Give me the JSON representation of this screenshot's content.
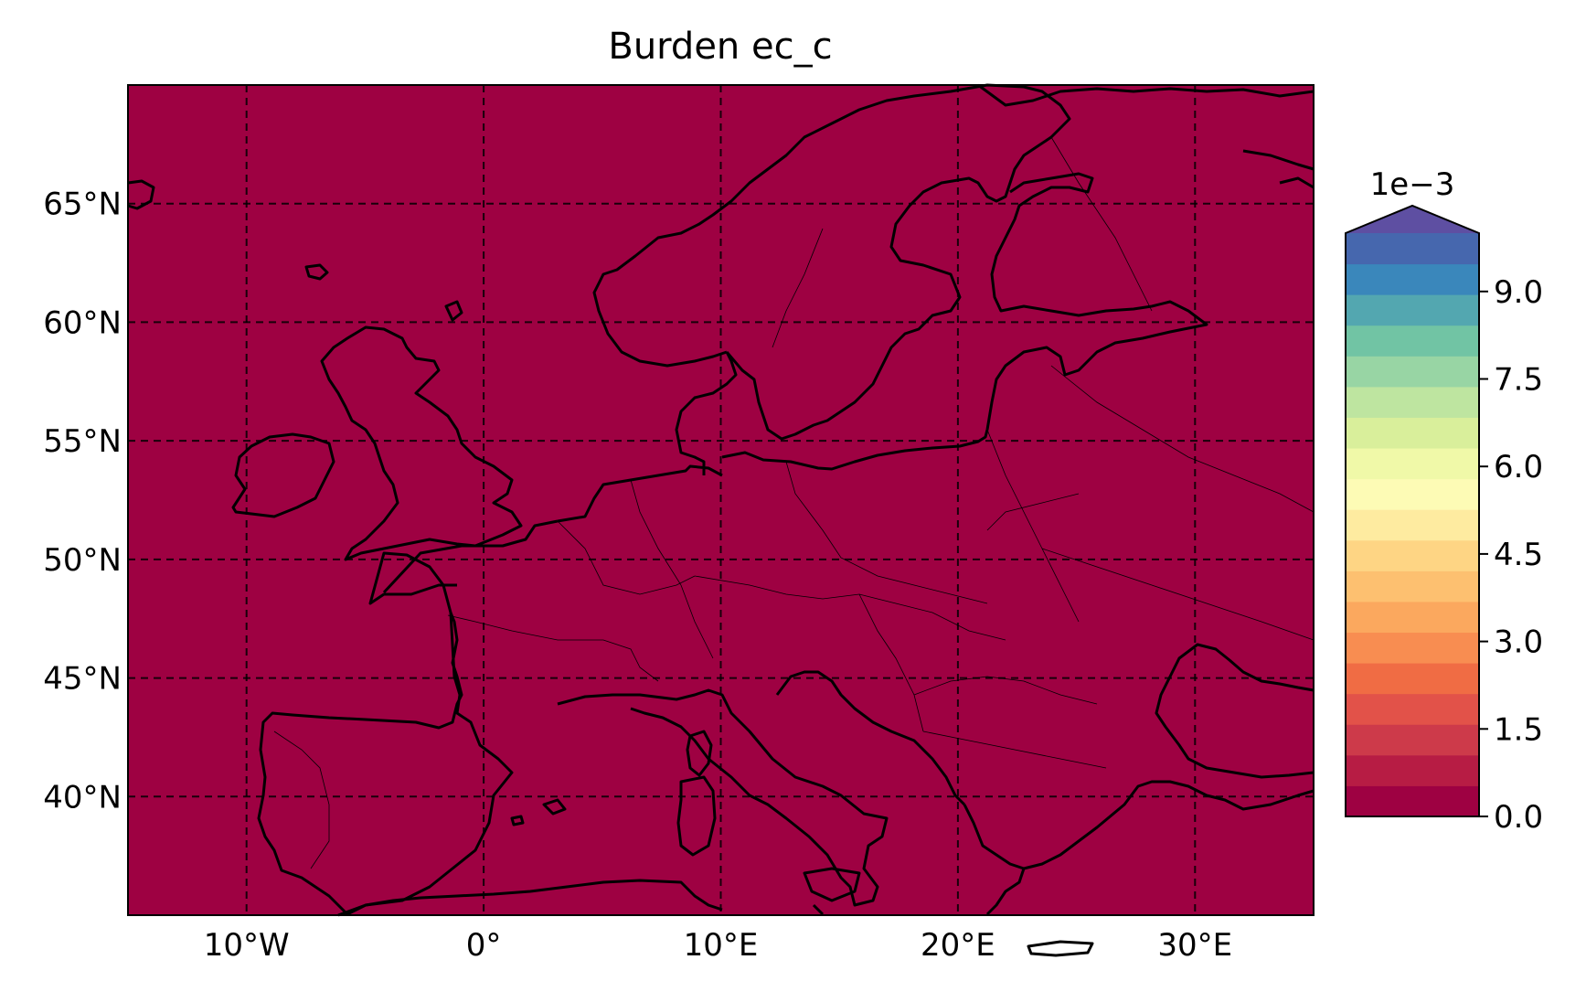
{
  "title": "Burden ec_c",
  "colors": {
    "map_fill": "#9e0142",
    "grid": "#000000",
    "coast": "#000000"
  },
  "x_ticks": [
    "10°W",
    "0°",
    "10°E",
    "20°E",
    "30°E"
  ],
  "y_ticks": [
    "65°N",
    "60°N",
    "55°N",
    "50°N",
    "45°N",
    "40°N"
  ],
  "colorbar": {
    "exponent_label": "1e−3",
    "tick_labels": [
      "0.0",
      "1.5",
      "3.0",
      "4.5",
      "6.0",
      "7.5",
      "9.0"
    ],
    "extend": "max",
    "colors": [
      "#9e0142",
      "#b71c44",
      "#cd3a4a",
      "#e25249",
      "#f06c44",
      "#f88d51",
      "#fba85e",
      "#fdc070",
      "#fed584",
      "#feeba0",
      "#fdfbb5",
      "#f0f9a8",
      "#d9ef9b",
      "#bee5a0",
      "#98d5a4",
      "#71c4a4",
      "#53a7b0",
      "#3a87bb",
      "#4667ae",
      "#5e4fa2"
    ]
  },
  "chart_data": {
    "type": "heatmap",
    "title": "Burden ec_c",
    "lon_range": [
      -15,
      35
    ],
    "lat_range": [
      35,
      70
    ],
    "x_ticks": [
      -10,
      0,
      10,
      20,
      30
    ],
    "y_ticks": [
      65,
      60,
      55,
      50,
      45,
      40
    ],
    "field_value": 0.0,
    "colorbar_range": [
      0.0,
      0.01
    ],
    "colorbar_ticks": [
      0.0,
      0.0015,
      0.003,
      0.0045,
      0.006,
      0.0075,
      0.009
    ],
    "grid": true
  }
}
